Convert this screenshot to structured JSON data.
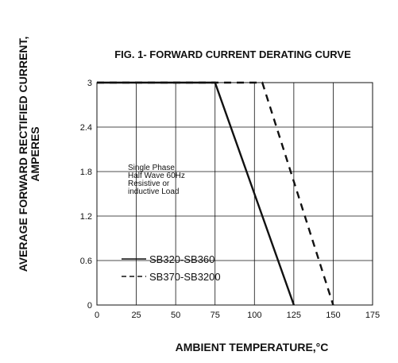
{
  "chart_data": {
    "type": "line",
    "title": "FIG. 1- FORWARD CURRENT DERATING CURVE",
    "xlabel": "AMBIENT TEMPERATURE,°C",
    "ylabel_line1": "AVERAGE FORWARD RECTIFIED CURRENT,",
    "ylabel_line2": "AMPERES",
    "xlim": [
      0,
      175
    ],
    "ylim": [
      0,
      3
    ],
    "x_ticks": [
      "0",
      "25",
      "50",
      "75",
      "100",
      "125",
      "150",
      "175"
    ],
    "y_ticks": [
      "0",
      "0.6",
      "1.2",
      "1.8",
      "2.4",
      "3"
    ],
    "x_tick_values": [
      0,
      25,
      50,
      75,
      100,
      125,
      150,
      175
    ],
    "y_tick_values": [
      0,
      0.6,
      1.2,
      1.8,
      2.4,
      3
    ],
    "grid": true,
    "annotation": [
      "Single Phase",
      "Half Wave 60Hz",
      "Resistive or",
      "inductive Load"
    ],
    "series": [
      {
        "name": "SB320-SB360",
        "style": "solid",
        "x": [
          0,
          75,
          125
        ],
        "y": [
          3,
          3,
          0
        ]
      },
      {
        "name": "SB370-SB3200",
        "style": "dashed",
        "x": [
          0,
          105,
          150
        ],
        "y": [
          3,
          3,
          0
        ]
      }
    ]
  }
}
